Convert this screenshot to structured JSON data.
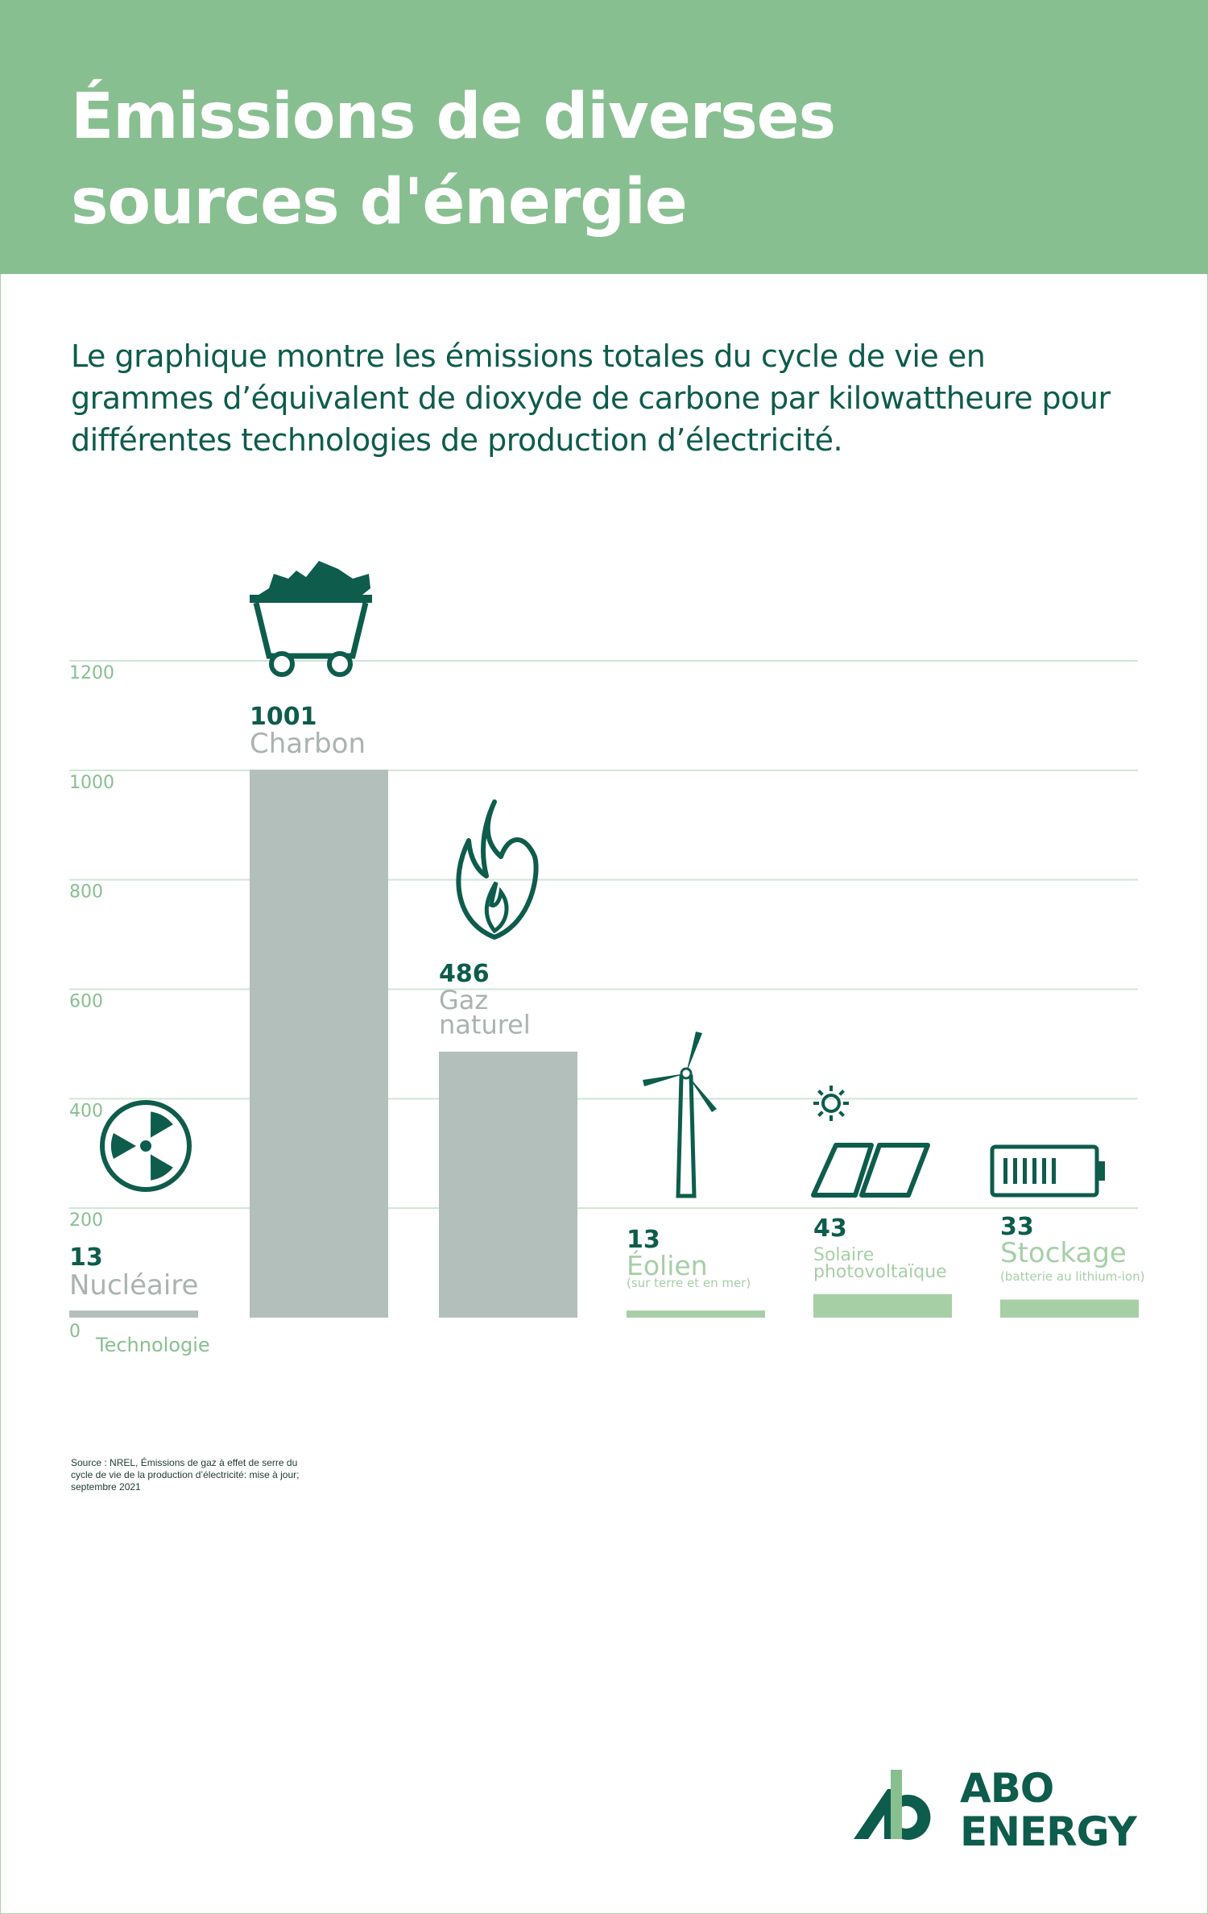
{
  "header": {
    "title": "Émissions de diverses sources d'énergie"
  },
  "intro": "Le graphique montre les émissions totales du cycle de vie en grammes d’équivalent de dioxyde de carbone par kilowattheure pour différentes technologies de production d’électricité.",
  "source": "Source : NREL, Émissions de gaz à effet de serre du cycle de vie de la production d’électricité: mise à jour; septembre 2021",
  "logo": {
    "line1": "ABO",
    "line2": "ENERGY"
  },
  "colors": {
    "header": "#88bf90",
    "fossil_bar": "#b3bfba",
    "clean_bar": "#a6cfa6",
    "dark_green": "#0d5c4c",
    "axis_text": "#88bf90",
    "grid": "#cfe6d4",
    "category_grey": "#a9b3b0"
  },
  "chart_data": {
    "type": "bar",
    "title": "",
    "xlabel": "Technologie",
    "ylabel": "",
    "ylim": [
      0,
      1200
    ],
    "yticks": [
      0,
      200,
      400,
      600,
      800,
      1000,
      1200
    ],
    "grid": true,
    "categories": [
      "Nucléaire",
      "Charbon",
      "Gaz naturel",
      "Éolien",
      "Solaire photovoltaïque",
      "Stockage"
    ],
    "category_notes": [
      "",
      "",
      "",
      "(sur terre et en mer)",
      "",
      "(batterie au lithium-ion)"
    ],
    "values": [
      13,
      1001,
      486,
      13,
      43,
      33
    ],
    "bar_groups": [
      "fossil",
      "fossil",
      "fossil",
      "clean",
      "clean",
      "clean"
    ],
    "icons": [
      "radiation-icon",
      "coal-cart-icon",
      "flame-icon",
      "wind-turbine-icon",
      "solar-panel-icon",
      "battery-icon"
    ]
  }
}
